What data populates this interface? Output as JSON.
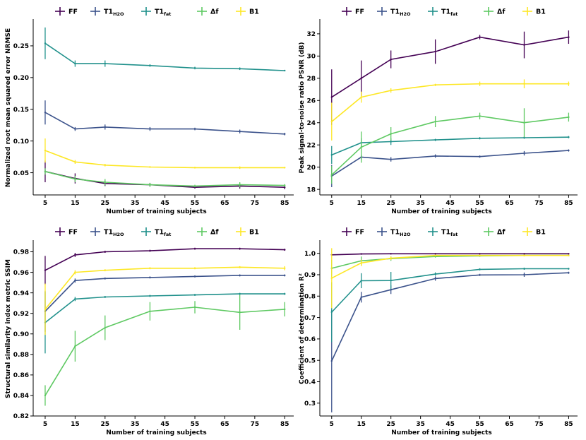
{
  "colors": {
    "FF": "#440154",
    "T1_H2O": "#3b528b",
    "T1_fat": "#21918c",
    "df": "#5ec962",
    "B1": "#fde725"
  },
  "legend": [
    {
      "key": "FF",
      "label": "FF",
      "sub": ""
    },
    {
      "key": "T1_H2O",
      "label": "T1",
      "sub": "H2O"
    },
    {
      "key": "T1_fat",
      "label": "T1",
      "sub": "fat"
    },
    {
      "key": "df",
      "label": "Δf",
      "sub": ""
    },
    {
      "key": "B1",
      "label": "B1",
      "sub": ""
    }
  ],
  "chart_data": [
    {
      "type": "line",
      "xlabel": "Number of training subjects",
      "ylabel": "Normalized root mean squared error NRMSE",
      "xticks": [
        "5",
        "15",
        "25",
        "35",
        "45",
        "55",
        "65",
        "75",
        "85"
      ],
      "yticks": [
        "0.05",
        "0.10",
        "0.15",
        "0.20",
        "0.25"
      ],
      "xlim": [
        1,
        88
      ],
      "ylim": [
        0.015,
        0.29
      ],
      "series": [
        {
          "key": "FF",
          "x": [
            5,
            15,
            25,
            40,
            55,
            70,
            85
          ],
          "y": [
            0.052,
            0.041,
            0.033,
            0.031,
            0.027,
            0.029,
            0.027
          ],
          "err": [
            0.017,
            0.008,
            0.004,
            0.003,
            0.002,
            0.004,
            0.003
          ]
        },
        {
          "key": "T1_H2O",
          "x": [
            5,
            15,
            25,
            40,
            55,
            70,
            85
          ],
          "y": [
            0.145,
            0.119,
            0.122,
            0.119,
            0.119,
            0.115,
            0.111
          ],
          "err": [
            0.019,
            0.003,
            0.004,
            0.003,
            0.002,
            0.003,
            0.002
          ]
        },
        {
          "key": "T1_fat",
          "x": [
            5,
            15,
            25,
            40,
            55,
            70,
            85
          ],
          "y": [
            0.254,
            0.222,
            0.222,
            0.219,
            0.215,
            0.214,
            0.211
          ],
          "err": [
            0.025,
            0.005,
            0.005,
            0.002,
            0.002,
            0.002,
            0.001
          ]
        },
        {
          "key": "df",
          "x": [
            5,
            15,
            25,
            40,
            55,
            70,
            85
          ],
          "y": [
            0.052,
            0.04,
            0.035,
            0.031,
            0.029,
            0.031,
            0.03
          ],
          "err": [
            0.005,
            0.005,
            0.005,
            0.003,
            0.002,
            0.004,
            0.002
          ]
        },
        {
          "key": "B1",
          "x": [
            5,
            15,
            25,
            40,
            55,
            70,
            85
          ],
          "y": [
            0.085,
            0.067,
            0.062,
            0.059,
            0.058,
            0.058,
            0.058
          ],
          "err": [
            0.019,
            0.003,
            0.002,
            0.001,
            0.001,
            0.002,
            0.001
          ]
        }
      ]
    },
    {
      "type": "line",
      "xlabel": "Number of training subjects",
      "ylabel": "Peak signal-to-noise ratio PSNR (dB)",
      "xticks": [
        "5",
        "15",
        "25",
        "35",
        "45",
        "55",
        "65",
        "75",
        "85"
      ],
      "yticks": [
        "18",
        "20",
        "22",
        "24",
        "26",
        "28",
        "30",
        "32"
      ],
      "xlim": [
        1,
        88
      ],
      "ylim": [
        17.5,
        33.2
      ],
      "series": [
        {
          "key": "FF",
          "x": [
            5,
            15,
            25,
            40,
            55,
            70,
            85
          ],
          "y": [
            26.3,
            28.0,
            29.7,
            30.4,
            31.7,
            31.0,
            31.7
          ],
          "err": [
            2.5,
            1.6,
            0.8,
            1.1,
            0.2,
            1.2,
            0.6
          ]
        },
        {
          "key": "T1_H2O",
          "x": [
            5,
            15,
            25,
            40,
            55,
            70,
            85
          ],
          "y": [
            19.2,
            20.9,
            20.7,
            21.0,
            20.95,
            21.25,
            21.5
          ],
          "err": [
            1.0,
            0.2,
            0.2,
            0.15,
            0.1,
            0.2,
            0.1
          ]
        },
        {
          "key": "T1_fat",
          "x": [
            5,
            15,
            25,
            40,
            55,
            70,
            85
          ],
          "y": [
            21.1,
            22.2,
            22.3,
            22.45,
            22.6,
            22.65,
            22.7
          ],
          "err": [
            0.8,
            0.4,
            0.3,
            0.1,
            0.1,
            0.1,
            0.1
          ]
        },
        {
          "key": "df",
          "x": [
            5,
            15,
            25,
            40,
            55,
            70,
            85
          ],
          "y": [
            19.3,
            21.8,
            23.0,
            24.1,
            24.6,
            24.0,
            24.5
          ],
          "err": [
            0.8,
            1.4,
            0.6,
            0.5,
            0.3,
            1.3,
            0.4
          ]
        },
        {
          "key": "B1",
          "x": [
            5,
            15,
            25,
            40,
            55,
            70,
            85
          ],
          "y": [
            24.1,
            26.3,
            26.9,
            27.4,
            27.5,
            27.5,
            27.5
          ],
          "err": [
            1.7,
            0.5,
            0.2,
            0.1,
            0.2,
            0.4,
            0.2
          ]
        }
      ]
    },
    {
      "type": "line",
      "xlabel": "Number of training subjects",
      "ylabel": "Structural similarity index metric SSIM",
      "xticks": [
        "5",
        "15",
        "25",
        "35",
        "45",
        "55",
        "65",
        "75",
        "85"
      ],
      "yticks": [
        "0.82",
        "0.84",
        "0.86",
        "0.88",
        "0.90",
        "0.92",
        "0.94",
        "0.96",
        "0.98"
      ],
      "xlim": [
        1,
        88
      ],
      "ylim": [
        0.82,
        0.99
      ],
      "series": [
        {
          "key": "FF",
          "x": [
            5,
            15,
            25,
            40,
            55,
            70,
            85
          ],
          "y": [
            0.962,
            0.977,
            0.98,
            0.981,
            0.983,
            0.983,
            0.982
          ],
          "err": [
            0.014,
            0.002,
            0.001,
            0.001,
            0.001,
            0.001,
            0.001
          ]
        },
        {
          "key": "T1_H2O",
          "x": [
            5,
            15,
            25,
            40,
            55,
            70,
            85
          ],
          "y": [
            0.922,
            0.952,
            0.954,
            0.955,
            0.956,
            0.957,
            0.957
          ],
          "err": [
            0.02,
            0.002,
            0.001,
            0.001,
            0.001,
            0.001,
            0.001
          ]
        },
        {
          "key": "T1_fat",
          "x": [
            5,
            15,
            25,
            40,
            55,
            70,
            85
          ],
          "y": [
            0.911,
            0.934,
            0.936,
            0.937,
            0.938,
            0.939,
            0.939
          ],
          "err": [
            0.03,
            0.002,
            0.001,
            0.001,
            0.001,
            0.001,
            0.001
          ]
        },
        {
          "key": "df",
          "x": [
            5,
            15,
            25,
            40,
            55,
            70,
            85
          ],
          "y": [
            0.84,
            0.888,
            0.906,
            0.922,
            0.926,
            0.921,
            0.924
          ],
          "err": [
            0.01,
            0.015,
            0.012,
            0.009,
            0.006,
            0.017,
            0.007
          ]
        },
        {
          "key": "B1",
          "x": [
            5,
            15,
            25,
            40,
            55,
            70,
            85
          ],
          "y": [
            0.924,
            0.96,
            0.962,
            0.964,
            0.964,
            0.965,
            0.964
          ],
          "err": [
            0.025,
            0.002,
            0.001,
            0.001,
            0.001,
            0.001,
            0.002
          ]
        }
      ]
    },
    {
      "type": "line",
      "xlabel": "Number of training subjects",
      "ylabel": "Coefficient of determination R²",
      "xticks": [
        "5",
        "15",
        "25",
        "35",
        "45",
        "55",
        "65",
        "75",
        "85"
      ],
      "yticks": [
        "0.3",
        "0.4",
        "0.5",
        "0.6",
        "0.7",
        "0.8",
        "0.9",
        "1.0"
      ],
      "xlim": [
        1,
        88
      ],
      "ylim": [
        0.24,
        1.055
      ],
      "series": [
        {
          "key": "FF",
          "x": [
            5,
            15,
            25,
            40,
            55,
            70,
            85
          ],
          "y": [
            0.993,
            0.997,
            0.998,
            0.998,
            0.998,
            0.998,
            0.998
          ],
          "err": [
            0.002,
            0.001,
            0.001,
            0.001,
            0.001,
            0.001,
            0.001
          ]
        },
        {
          "key": "T1_H2O",
          "x": [
            5,
            15,
            25,
            40,
            55,
            70,
            85
          ],
          "y": [
            0.497,
            0.795,
            0.83,
            0.882,
            0.899,
            0.9,
            0.909
          ],
          "err": [
            0.24,
            0.025,
            0.02,
            0.01,
            0.005,
            0.01,
            0.005
          ]
        },
        {
          "key": "T1_fat",
          "x": [
            5,
            15,
            25,
            40,
            55,
            70,
            85
          ],
          "y": [
            0.725,
            0.872,
            0.873,
            0.903,
            0.925,
            0.928,
            0.928
          ],
          "err": [
            0.14,
            0.035,
            0.04,
            0.008,
            0.005,
            0.005,
            0.004
          ]
        },
        {
          "key": "df",
          "x": [
            5,
            15,
            25,
            40,
            55,
            70,
            85
          ],
          "y": [
            0.93,
            0.965,
            0.975,
            0.985,
            0.988,
            0.99,
            0.99
          ],
          "err": [
            0.04,
            0.02,
            0.01,
            0.005,
            0.004,
            0.004,
            0.003
          ]
        },
        {
          "key": "B1",
          "x": [
            5,
            15,
            25,
            40,
            55,
            70,
            85
          ],
          "y": [
            0.884,
            0.955,
            0.977,
            0.99,
            0.99,
            0.99,
            0.99
          ],
          "err": [
            0.14,
            0.015,
            0.008,
            0.003,
            0.003,
            0.003,
            0.003
          ]
        }
      ]
    }
  ]
}
